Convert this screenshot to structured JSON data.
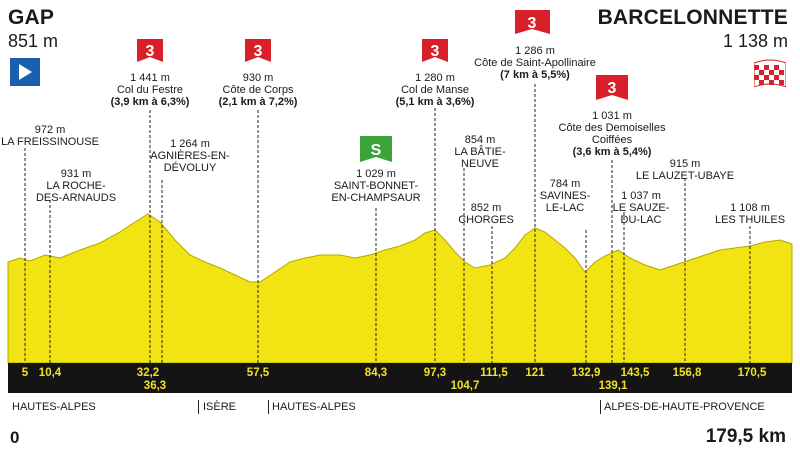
{
  "start": {
    "name": "GAP",
    "altitude": "851 m"
  },
  "finish": {
    "name": "BARCELONNETTE",
    "altitude": "1 138 m"
  },
  "distance": {
    "start": "0",
    "total": "179,5 km"
  },
  "colors": {
    "profile": "#f2e312",
    "band": "#141414",
    "climb_badge": "#d8202a",
    "sprint_badge": "#3aa33a",
    "start_flag": "#1b5fb0"
  },
  "climbs": [
    {
      "category": "3",
      "altitude": "1 441 m",
      "name": "Col du Festre",
      "detail": "(3,9 km à 6,3%)"
    },
    {
      "category": "3",
      "altitude": "930 m",
      "name": "Côte de Corps",
      "detail": "(2,1 km à 7,2%)"
    },
    {
      "category": "3",
      "altitude": "1 280 m",
      "name": "Col de Manse",
      "detail": "(5,1 km à 3,6%)"
    },
    {
      "category": "3",
      "altitude": "1 286 m",
      "name": "Côte de Saint-Apollinaire",
      "detail": "(7 km à 5,5%)"
    },
    {
      "category": "3",
      "altitude": "1 031 m",
      "name_line1": "Côte des Demoiselles",
      "name_line2": "Coiffées",
      "detail": "(3,6 km à 5,4%)"
    }
  ],
  "sprint": {
    "icon": "sprint-icon",
    "label": "S"
  },
  "places": [
    {
      "altitude": "972 m",
      "line1": "LA FREISSINOUSE"
    },
    {
      "altitude": "931 m",
      "line1": "LA ROCHE-",
      "line2": "DES-ARNAUDS"
    },
    {
      "altitude": "1 264 m",
      "line1": "AGNIÈRES-EN-",
      "line2": "DÉVOLUY"
    },
    {
      "altitude": "1 029 m",
      "line1": "SAINT-BONNET-",
      "line2": "EN-CHAMPSAUR"
    },
    {
      "altitude": "854 m",
      "line1": "LA BÂTIE-",
      "line2": "NEUVE"
    },
    {
      "altitude": "852 m",
      "line1": "CHORGES"
    },
    {
      "altitude": "784 m",
      "line1": "SAVINES-",
      "line2": "LE-LAC"
    },
    {
      "altitude": "1 037 m",
      "line1": "LE SAUZE-",
      "line2": "DU-LAC"
    },
    {
      "altitude": "915 m",
      "line1": "LE LAUZET-UBAYE"
    },
    {
      "altitude": "1 108 m",
      "line1": "LES THUILES"
    }
  ],
  "km_marks": [
    "5",
    "10,4",
    "32,2",
    "36,3",
    "57,5",
    "84,3",
    "97,3",
    "104,7",
    "111,5",
    "121",
    "132,9",
    "139,1",
    "143,5",
    "156,8",
    "170,5"
  ],
  "regions": [
    "HAUTES-ALPES",
    "ISÈRE",
    "HAUTES-ALPES",
    "ALPES-DE-HAUTE-PROVENCE"
  ]
}
